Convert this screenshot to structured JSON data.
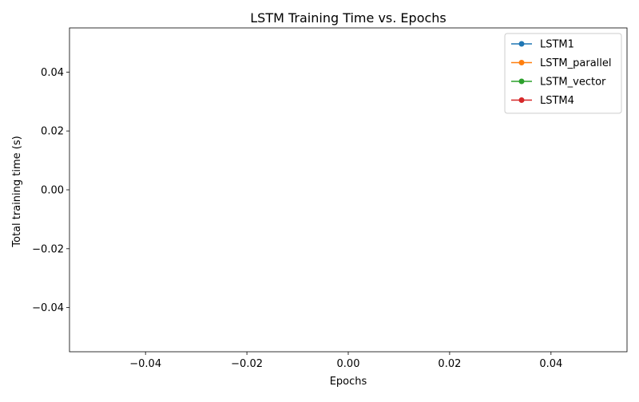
{
  "chart_data": {
    "type": "line",
    "title": "LSTM Training Time vs. Epochs",
    "xlabel": "Epochs",
    "ylabel": "Total training time (s)",
    "xlim": [
      -0.055,
      0.055
    ],
    "ylim": [
      -0.055,
      0.055
    ],
    "xticks": [
      -0.04,
      -0.02,
      0.0,
      0.02,
      0.04
    ],
    "xtick_labels": [
      "−0.04",
      "−0.02",
      "0.00",
      "0.02",
      "0.04"
    ],
    "yticks": [
      -0.04,
      -0.02,
      0.0,
      0.02,
      0.04
    ],
    "ytick_labels": [
      "−0.04",
      "−0.02",
      "0.00",
      "0.02",
      "0.04"
    ],
    "grid": false,
    "legend_position": "top-right",
    "marker": "circle",
    "series": [
      {
        "name": "LSTM1",
        "color": "#1f77b4",
        "x": [],
        "y": []
      },
      {
        "name": "LSTM_parallel",
        "color": "#ff7f0e",
        "x": [],
        "y": []
      },
      {
        "name": "LSTM_vector",
        "color": "#2ca02c",
        "x": [],
        "y": []
      },
      {
        "name": "LSTM4",
        "color": "#d62728",
        "x": [],
        "y": []
      }
    ]
  }
}
